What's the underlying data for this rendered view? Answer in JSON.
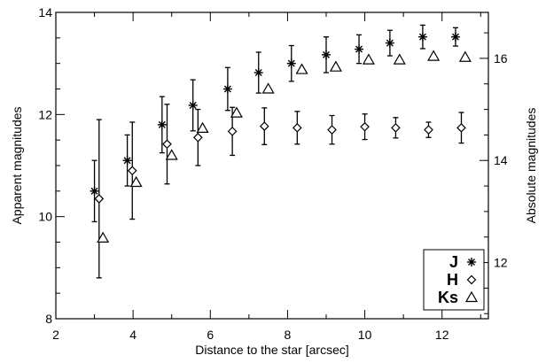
{
  "chart_data": {
    "type": "scatter",
    "xlabel": "Distance to the star [arcsec]",
    "ylabel": "Apparent magnitudes",
    "y2label": "Absolute magnitudes",
    "xlim": [
      2,
      13.2
    ],
    "ylim": [
      8,
      14
    ],
    "y2lim": [
      10.9,
      16.9
    ],
    "x_ticks": [
      2,
      4,
      6,
      8,
      10,
      12
    ],
    "y_ticks": [
      8,
      10,
      12,
      14
    ],
    "y2_ticks": [
      12,
      14,
      16
    ],
    "legend_position": "bottom-right",
    "error_bars": true,
    "series": [
      {
        "name": "J",
        "marker": "asterisk",
        "x": [
          3.0,
          3.85,
          4.75,
          5.55,
          6.45,
          7.25,
          8.1,
          9.0,
          9.85,
          10.65,
          11.5,
          12.35
        ],
        "y": [
          10.5,
          11.1,
          11.8,
          12.18,
          12.5,
          12.82,
          13.0,
          13.17,
          13.28,
          13.4,
          13.52,
          13.52
        ],
        "yerr": [
          0.6,
          0.5,
          0.55,
          0.5,
          0.42,
          0.4,
          0.35,
          0.35,
          0.28,
          0.25,
          0.23,
          0.18
        ]
      },
      {
        "name": "H",
        "marker": "diamond",
        "x": [
          3.12,
          3.98,
          4.88,
          5.68,
          6.57,
          7.4,
          8.25,
          9.15,
          10.0,
          10.8,
          11.65,
          12.5
        ],
        "y": [
          10.35,
          10.9,
          11.42,
          11.55,
          11.67,
          11.77,
          11.74,
          11.7,
          11.76,
          11.74,
          11.7,
          11.74
        ],
        "yerr": [
          1.55,
          0.95,
          0.78,
          0.55,
          0.47,
          0.36,
          0.32,
          0.28,
          0.25,
          0.2,
          0.15,
          0.3
        ]
      },
      {
        "name": "Ks",
        "marker": "triangle",
        "x": [
          3.22,
          4.08,
          5.0,
          5.8,
          6.68,
          7.5,
          8.37,
          9.25,
          10.1,
          10.9,
          11.78,
          12.6
        ],
        "y": [
          9.58,
          10.67,
          11.2,
          11.73,
          12.03,
          12.5,
          12.88,
          12.93,
          13.07,
          13.07,
          13.14,
          13.12
        ]
      }
    ]
  },
  "legend": {
    "items": [
      {
        "label": "J",
        "marker": "asterisk"
      },
      {
        "label": "H",
        "marker": "diamond"
      },
      {
        "label": "Ks",
        "marker": "triangle"
      }
    ]
  }
}
